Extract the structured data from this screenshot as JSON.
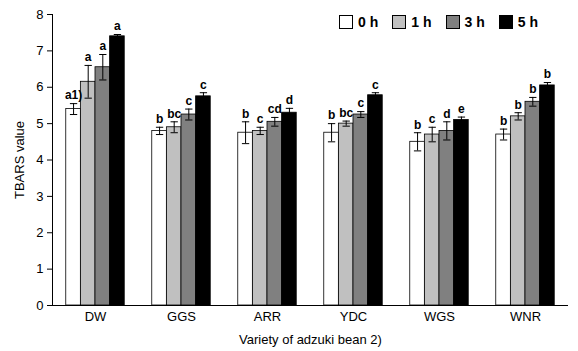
{
  "chart_data": {
    "type": "bar",
    "x_label": "Variety of adzuki bean 2)",
    "y_label": "TBARS value",
    "categories": [
      "DW",
      "GGS",
      "ARR",
      "YDC",
      "WGS",
      "WNR"
    ],
    "series": [
      {
        "name": "0 h",
        "color": "#ffffff",
        "values": [
          5.4,
          4.8,
          4.75,
          4.75,
          4.5,
          4.7
        ],
        "errors": [
          0.15,
          0.1,
          0.3,
          0.25,
          0.25,
          0.15
        ],
        "letters": [
          "a1)",
          "b",
          "b",
          "b",
          "b",
          "b"
        ]
      },
      {
        "name": "1 h",
        "color": "#c0c0c0",
        "values": [
          6.15,
          4.9,
          4.8,
          5.0,
          4.7,
          5.2
        ],
        "errors": [
          0.45,
          0.15,
          0.1,
          0.07,
          0.2,
          0.1
        ],
        "letters": [
          "a",
          "bc",
          "c",
          "bc",
          "c",
          "b"
        ]
      },
      {
        "name": "3 h",
        "color": "#808080",
        "values": [
          6.55,
          5.25,
          5.05,
          5.25,
          4.8,
          5.6
        ],
        "errors": [
          0.35,
          0.15,
          0.12,
          0.08,
          0.25,
          0.12
        ],
        "letters": [
          "a",
          "c",
          "cd",
          "c",
          "d",
          "b"
        ]
      },
      {
        "name": "5 h",
        "color": "#000000",
        "values": [
          7.4,
          5.75,
          5.3,
          5.78,
          5.1,
          6.05
        ],
        "errors": [
          0.05,
          0.1,
          0.12,
          0.07,
          0.08,
          0.08
        ],
        "letters": [
          "a",
          "c",
          "d",
          "c",
          "e",
          "b"
        ]
      }
    ],
    "ylim": [
      0,
      8
    ],
    "yticks": [
      0,
      1,
      2,
      3,
      4,
      5,
      6,
      7,
      8
    ],
    "legend": "top right",
    "grid": false
  }
}
